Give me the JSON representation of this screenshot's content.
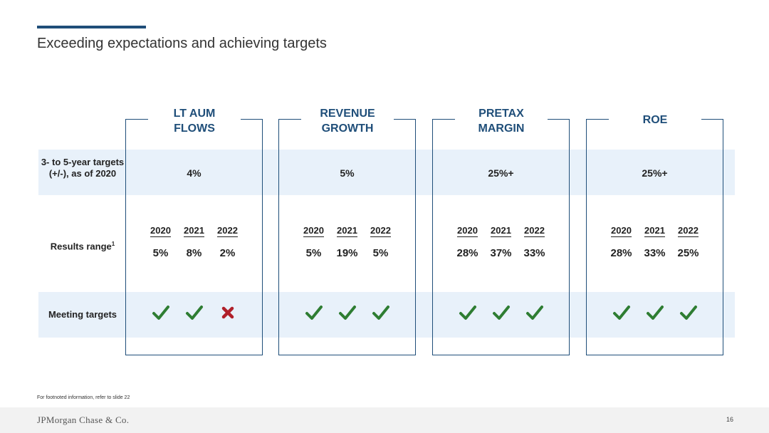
{
  "slide": {
    "title": "Exceeding expectations and achieving targets",
    "accent_color": "#1f4e79",
    "band_color": "#e8f1fa",
    "check_color": "#2e7d32",
    "cross_color": "#b0202a"
  },
  "row_labels": {
    "targets": "3- to 5-year targets (+/-), as of 2020",
    "results": "Results range",
    "results_footnote": "1",
    "meeting": "Meeting targets"
  },
  "columns": [
    {
      "heading_line1": "LT AUM",
      "heading_line2": "FLOWS",
      "target": "4%",
      "years": [
        "2020",
        "2021",
        "2022"
      ],
      "results": [
        "5%",
        "8%",
        "2%"
      ],
      "meeting": [
        "check-icon",
        "check-icon",
        "cross-icon"
      ]
    },
    {
      "heading_line1": "REVENUE",
      "heading_line2": "GROWTH",
      "target": "5%",
      "years": [
        "2020",
        "2021",
        "2022"
      ],
      "results": [
        "5%",
        "19%",
        "5%"
      ],
      "meeting": [
        "check-icon",
        "check-icon",
        "check-icon"
      ]
    },
    {
      "heading_line1": "PRETAX",
      "heading_line2": "MARGIN",
      "target": "25%+",
      "years": [
        "2020",
        "2021",
        "2022"
      ],
      "results": [
        "28%",
        "37%",
        "33%"
      ],
      "meeting": [
        "check-icon",
        "check-icon",
        "check-icon"
      ]
    },
    {
      "heading_line1": "ROE",
      "heading_line2": "",
      "target": "25%+",
      "years": [
        "2020",
        "2021",
        "2022"
      ],
      "results": [
        "28%",
        "33%",
        "25%"
      ],
      "meeting": [
        "check-icon",
        "check-icon",
        "check-icon"
      ]
    }
  ],
  "footer": {
    "footnote": "For footnoted information, refer to slide 22",
    "logo_text": "JPMorgan Chase & Co.",
    "page_number": "16"
  }
}
